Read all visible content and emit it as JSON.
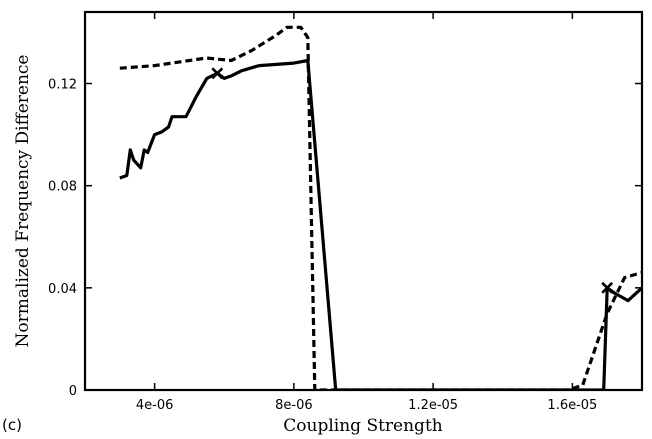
{
  "chart_data": {
    "type": "line",
    "panel_label": "(c)",
    "title": "",
    "xlabel": "Coupling Strength",
    "ylabel": "Normalized Frequency Difference",
    "xlim": [
      2e-06,
      1.8e-05
    ],
    "ylim": [
      0,
      0.148
    ],
    "xticks": [
      4e-06,
      8e-06,
      1.2e-05,
      1.6e-05
    ],
    "xtick_labels": [
      "4e-06",
      "8e-06",
      "1.2e-05",
      "1.6e-05"
    ],
    "yticks": [
      0,
      0.04,
      0.08,
      0.12
    ],
    "ytick_labels": [
      "0",
      "0.04",
      "0.08",
      "0.12"
    ],
    "grid": false,
    "legend": false,
    "series": [
      {
        "style": "solid",
        "color": "#000000",
        "points": [
          [
            3e-06,
            0.083
          ],
          [
            3.2e-06,
            0.084
          ],
          [
            3.3e-06,
            0.094
          ],
          [
            3.4e-06,
            0.09
          ],
          [
            3.6e-06,
            0.087
          ],
          [
            3.7e-06,
            0.094
          ],
          [
            3.8e-06,
            0.093
          ],
          [
            4e-06,
            0.1
          ],
          [
            4.2e-06,
            0.101
          ],
          [
            4.4e-06,
            0.103
          ],
          [
            4.5e-06,
            0.107
          ],
          [
            4.7e-06,
            0.107
          ],
          [
            4.9e-06,
            0.107
          ],
          [
            5.2e-06,
            0.115
          ],
          [
            5.5e-06,
            0.122
          ],
          [
            5.8e-06,
            0.124
          ],
          [
            6e-06,
            0.122
          ],
          [
            6.2e-06,
            0.123
          ],
          [
            6.5e-06,
            0.125
          ],
          [
            7e-06,
            0.127
          ],
          [
            8e-06,
            0.128
          ],
          [
            8.4e-06,
            0.129
          ],
          [
            9.2e-06,
            0.0
          ],
          [
            1.65e-05,
            0.0
          ],
          [
            1.69e-05,
            0.0
          ],
          [
            1.7e-05,
            0.04
          ],
          [
            1.72e-05,
            0.038
          ],
          [
            1.76e-05,
            0.035
          ],
          [
            1.8e-05,
            0.04
          ]
        ],
        "markers": [
          [
            5.8e-06,
            0.124
          ],
          [
            1.7e-05,
            0.04
          ]
        ]
      },
      {
        "style": "dashed",
        "color": "#000000",
        "points": [
          [
            3e-06,
            0.126
          ],
          [
            4e-06,
            0.127
          ],
          [
            5e-06,
            0.129
          ],
          [
            5.5e-06,
            0.13
          ],
          [
            6.2e-06,
            0.129
          ],
          [
            6.8e-06,
            0.133
          ],
          [
            7.5e-06,
            0.139
          ],
          [
            7.8e-06,
            0.142
          ],
          [
            8.2e-06,
            0.142
          ],
          [
            8.4e-06,
            0.138
          ],
          [
            8.6e-06,
            0.0
          ],
          [
            1.59e-05,
            0.0
          ],
          [
            1.63e-05,
            0.002
          ],
          [
            1.7e-05,
            0.03
          ],
          [
            1.75e-05,
            0.044
          ],
          [
            1.8e-05,
            0.046
          ]
        ]
      }
    ]
  }
}
